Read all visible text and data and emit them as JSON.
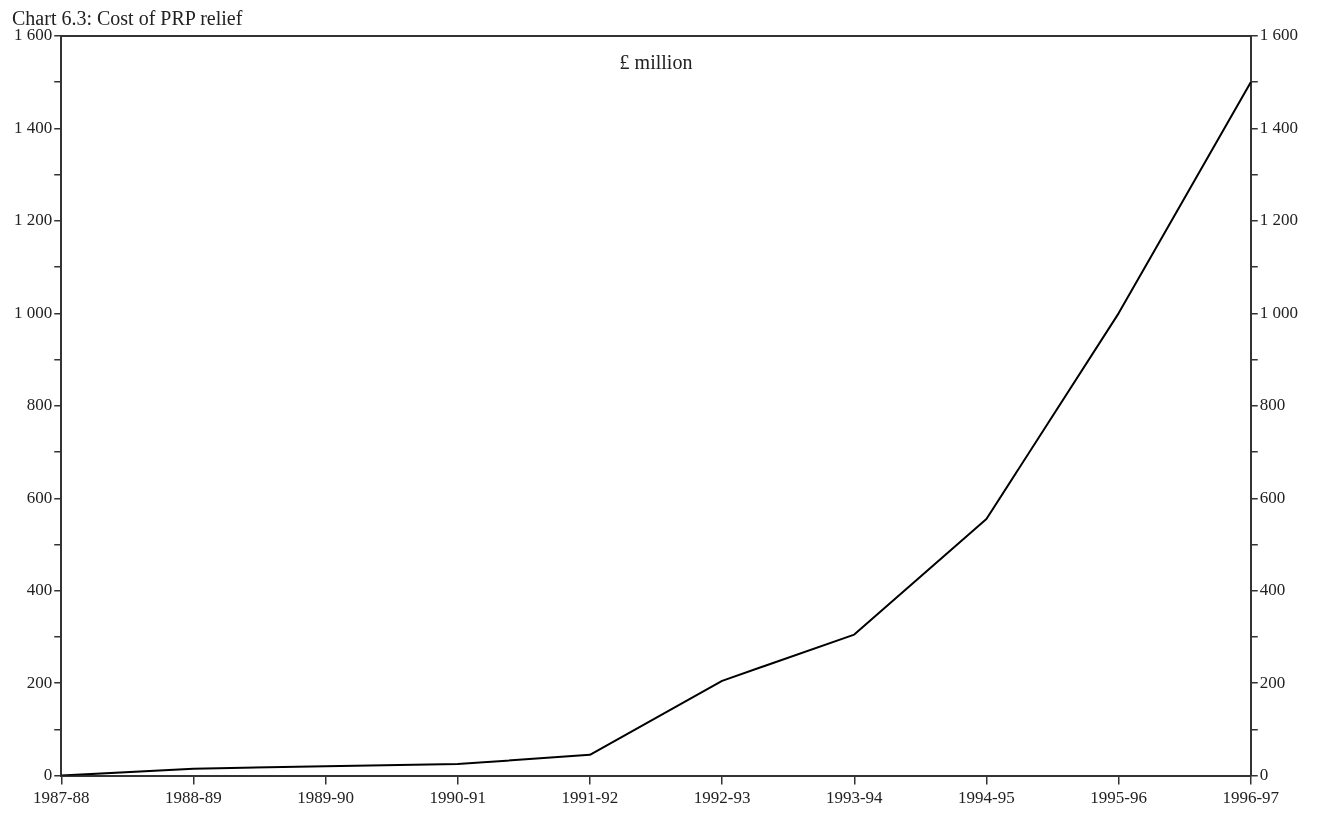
{
  "chart_data": {
    "type": "line",
    "title": "Chart 6.3: Cost of PRP relief",
    "annotations": [
      "£ million"
    ],
    "categories": [
      "1987-88",
      "1988-89",
      "1989-90",
      "1990-91",
      "1991-92",
      "1992-93",
      "1993-94",
      "1994-95",
      "1995-96",
      "1996-97"
    ],
    "series": [
      {
        "color": "#000000",
        "values": [
          0,
          15,
          20,
          25,
          45,
          205,
          305,
          555,
          1000,
          1500
        ]
      }
    ],
    "ylim": [
      0,
      1600
    ],
    "yticks": [
      0,
      {
        "value": 100,
        "label": null
      },
      200,
      {
        "value": 300,
        "label": null
      },
      400,
      {
        "value": 500,
        "label": null
      },
      600,
      {
        "value": 700,
        "label": null
      },
      800,
      {
        "value": 900,
        "label": null
      },
      {
        "value": 1000,
        "label": "1 000"
      },
      {
        "value": 1100,
        "label": null
      },
      {
        "value": 1200,
        "label": "1 200"
      },
      {
        "value": 1300,
        "label": null
      },
      {
        "value": 1400,
        "label": "1 400"
      },
      {
        "value": 1500,
        "label": null
      },
      {
        "value": 1600,
        "label": "1 600"
      }
    ],
    "y2lim": [
      0,
      1600
    ],
    "y2ticks": [
      0,
      {
        "value": 100,
        "label": null
      },
      200,
      {
        "value": 300,
        "label": null
      },
      400,
      {
        "value": 500,
        "label": null
      },
      600,
      {
        "value": 700,
        "label": null
      },
      800,
      {
        "value": 900,
        "label": null
      },
      {
        "value": 1000,
        "label": "1 000"
      },
      {
        "value": 1100,
        "label": null
      },
      {
        "value": 1200,
        "label": "1 200"
      },
      {
        "value": 1300,
        "label": null
      },
      {
        "value": 1400,
        "label": "1 400"
      },
      {
        "value": 1500,
        "label": null
      },
      {
        "value": 1600,
        "label": "1 600"
      }
    ],
    "grid": false,
    "legend": false,
    "marker": "none",
    "line_style": "solid"
  }
}
